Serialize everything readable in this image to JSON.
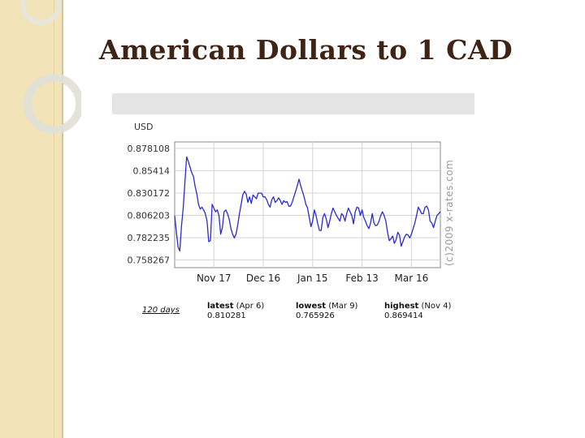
{
  "slide": {
    "title": "American Dollars to 1 CAD"
  },
  "chart_data": {
    "type": "line",
    "ylabel": "USD",
    "ylim": [
      0.75,
      0.885
    ],
    "y_ticks": [
      "0.878108",
      "0.85414",
      "0.830172",
      "0.806203",
      "0.782235",
      "0.758267"
    ],
    "y_tick_values": [
      0.878108,
      0.85414,
      0.830172,
      0.806203,
      0.782235,
      0.758267
    ],
    "x_ticks": [
      "Nov 17",
      "Dec 16",
      "Jan 15",
      "Feb 13",
      "Mar 16"
    ],
    "x_tick_index": [
      23,
      52,
      81,
      110,
      139
    ],
    "watermark": "(c)2009 x-rates.com",
    "grid": true,
    "series": [
      {
        "color": "#2b2bd0",
        "values": [
          0.806,
          0.788,
          0.772,
          0.768,
          0.795,
          0.814,
          0.842,
          0.869,
          0.864,
          0.858,
          0.852,
          0.848,
          0.837,
          0.829,
          0.818,
          0.813,
          0.815,
          0.812,
          0.808,
          0.8,
          0.778,
          0.779,
          0.818,
          0.814,
          0.81,
          0.812,
          0.806,
          0.786,
          0.793,
          0.81,
          0.812,
          0.808,
          0.802,
          0.792,
          0.786,
          0.782,
          0.786,
          0.796,
          0.808,
          0.818,
          0.828,
          0.832,
          0.829,
          0.82,
          0.826,
          0.819,
          0.828,
          0.826,
          0.824,
          0.83,
          0.83,
          0.83,
          0.826,
          0.826,
          0.823,
          0.818,
          0.815,
          0.823,
          0.826,
          0.82,
          0.822,
          0.825,
          0.822,
          0.818,
          0.822,
          0.82,
          0.821,
          0.816,
          0.816,
          0.82,
          0.826,
          0.832,
          0.838,
          0.845,
          0.838,
          0.832,
          0.826,
          0.818,
          0.814,
          0.804,
          0.794,
          0.8,
          0.812,
          0.806,
          0.797,
          0.79,
          0.79,
          0.804,
          0.808,
          0.802,
          0.793,
          0.8,
          0.808,
          0.814,
          0.81,
          0.806,
          0.803,
          0.8,
          0.808,
          0.806,
          0.8,
          0.808,
          0.814,
          0.81,
          0.806,
          0.797,
          0.81,
          0.815,
          0.814,
          0.806,
          0.812,
          0.804,
          0.8,
          0.795,
          0.792,
          0.798,
          0.808,
          0.798,
          0.795,
          0.796,
          0.8,
          0.806,
          0.81,
          0.806,
          0.8,
          0.788,
          0.779,
          0.781,
          0.784,
          0.776,
          0.78,
          0.788,
          0.785,
          0.773,
          0.778,
          0.783,
          0.786,
          0.785,
          0.782,
          0.786,
          0.792,
          0.798,
          0.806,
          0.815,
          0.812,
          0.808,
          0.808,
          0.815,
          0.816,
          0.812,
          0.8,
          0.798,
          0.793,
          0.8,
          0.806,
          0.808,
          0.81
        ]
      }
    ]
  },
  "stats": {
    "period": "120 days",
    "latest_label": "latest",
    "latest_date": "(Apr 6)",
    "latest_value": "0.810281",
    "lowest_label": "lowest",
    "lowest_date": "(Mar 9)",
    "lowest_value": "0.765926",
    "highest_label": "highest",
    "highest_date": "(Nov 4)",
    "highest_value": "0.869414"
  }
}
